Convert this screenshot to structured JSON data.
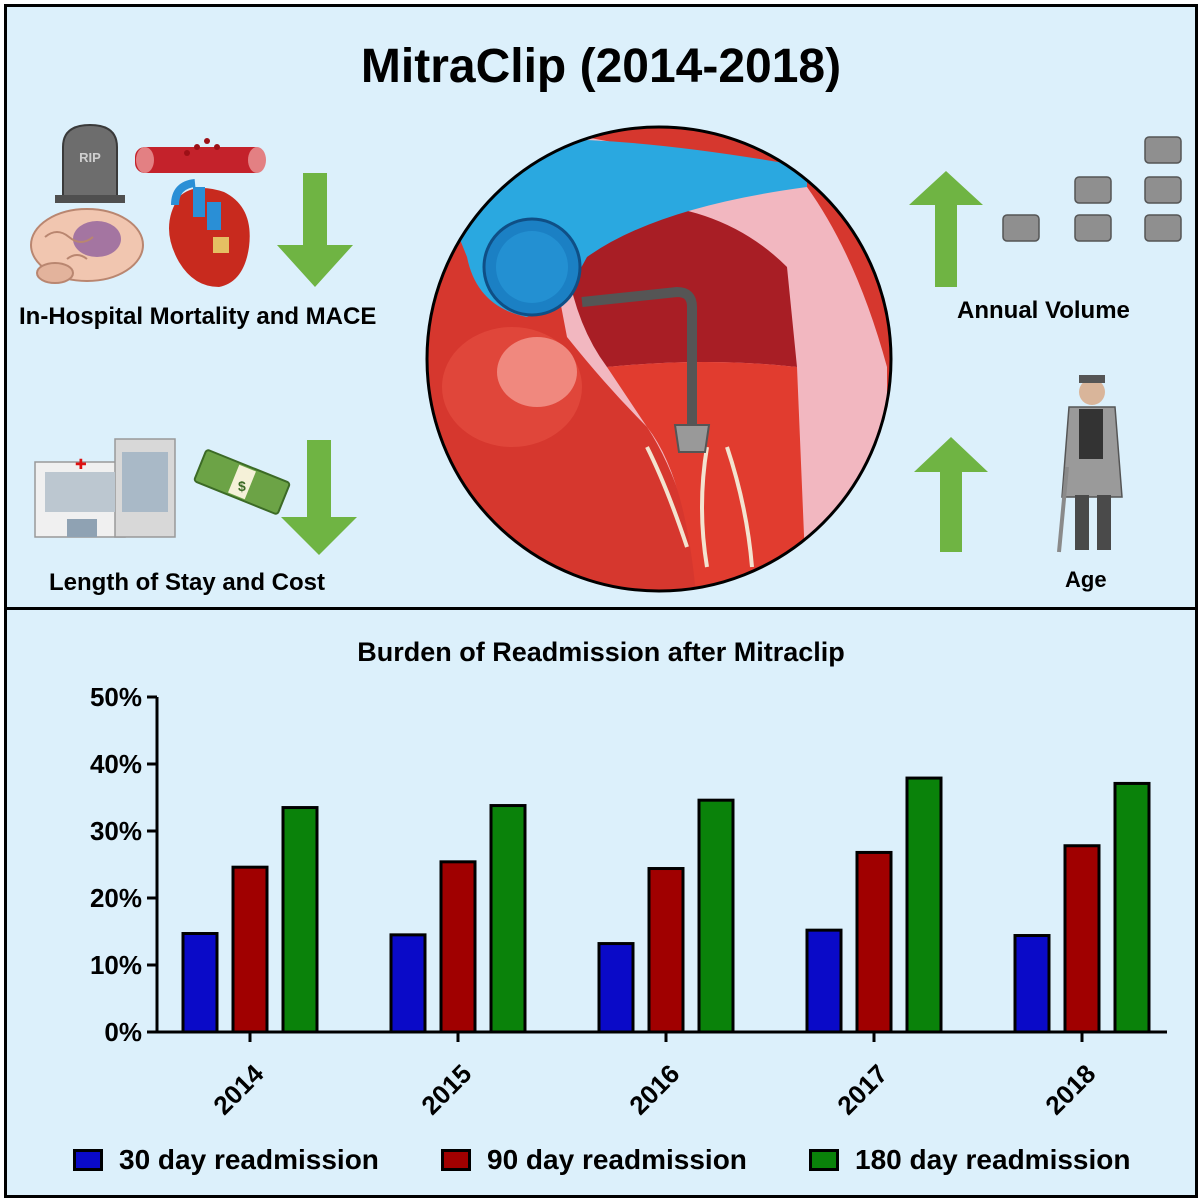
{
  "header": {
    "title": "MitraClip (2014-2018)"
  },
  "infographic": {
    "mortality_label": "In-Hospital Mortality and MACE",
    "stay_label": "Length of Stay and Cost",
    "volume_label": "Annual Volume",
    "age_label": "Age",
    "tombstone_text": "RIP",
    "colors": {
      "arrow": "#6fb443",
      "background": "#dcf0fb"
    }
  },
  "chart_data": {
    "type": "bar",
    "title": "Burden of Readmission after Mitraclip",
    "categories": [
      "2014",
      "2015",
      "2016",
      "2017",
      "2018"
    ],
    "series": [
      {
        "name": "30 day readmission",
        "color": "#0a0ac8",
        "values": [
          14.7,
          14.5,
          13.2,
          15.2,
          14.4
        ]
      },
      {
        "name": "90 day readmission",
        "color": "#a00000",
        "values": [
          24.6,
          25.4,
          24.4,
          26.8,
          27.8
        ]
      },
      {
        "name": "180 day readmission",
        "color": "#0a820a",
        "values": [
          33.5,
          33.8,
          34.6,
          37.9,
          37.1
        ]
      }
    ],
    "ylim": [
      0,
      50
    ],
    "yticks": [
      "0%",
      "10%",
      "20%",
      "30%",
      "40%",
      "50%"
    ],
    "legend_position": "bottom"
  }
}
